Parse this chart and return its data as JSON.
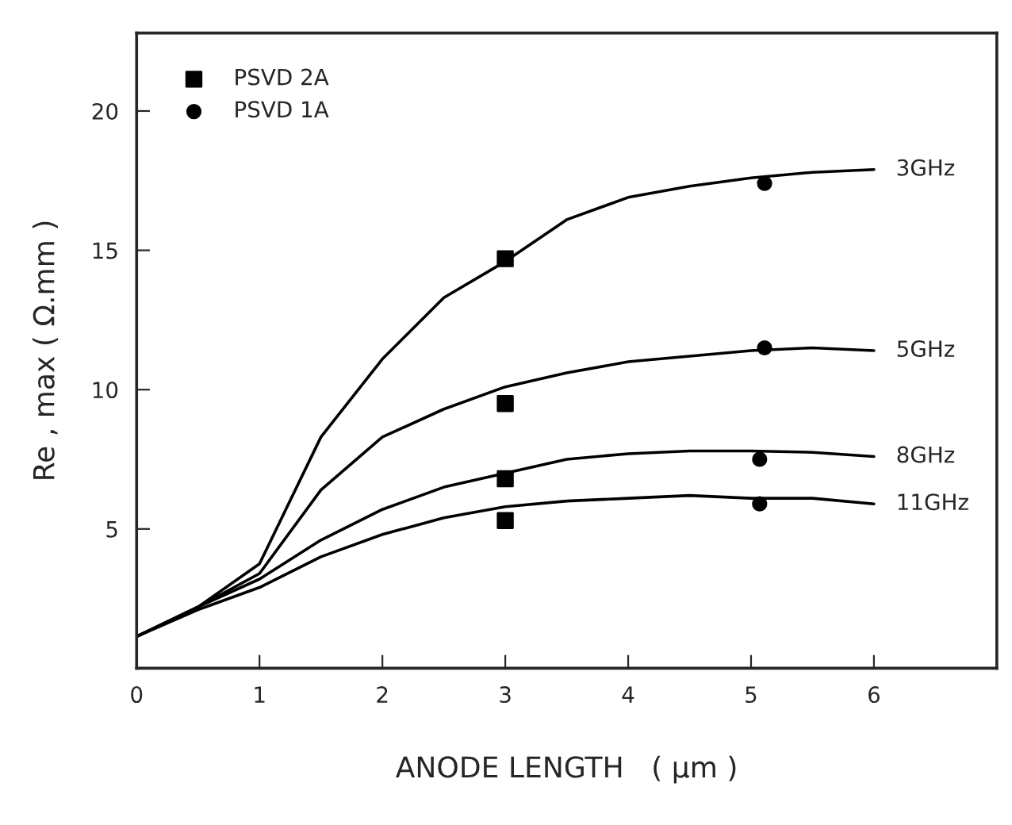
{
  "chart_data": {
    "type": "line",
    "xlabel": "ANODE LENGTH   ( µm )",
    "ylabel": "Re , max ( Ω.mm )",
    "xlim": [
      0,
      7
    ],
    "ylim": [
      0,
      22.8
    ],
    "xticks": [
      0,
      1,
      2,
      3,
      4,
      5,
      6
    ],
    "yticks": [
      5,
      10,
      15,
      20
    ],
    "grid": false,
    "legend": "top left",
    "series": [
      {
        "name": "3GHz",
        "color": "#000000",
        "x": [
          0,
          0.5,
          1,
          1.5,
          2,
          2.5,
          3,
          3.5,
          4,
          4.5,
          5,
          5.5,
          6
        ],
        "values": [
          1.14,
          2.2,
          3.75,
          8.3,
          11.1,
          13.3,
          14.6,
          16.1,
          16.9,
          17.3,
          17.6,
          17.8,
          17.9
        ]
      },
      {
        "name": "5GHz",
        "color": "#000000",
        "x": [
          0,
          0.5,
          1,
          1.5,
          2,
          2.5,
          3,
          3.5,
          4,
          4.5,
          5,
          5.5,
          6
        ],
        "values": [
          1.14,
          2.2,
          3.4,
          6.4,
          8.3,
          9.3,
          10.1,
          10.6,
          11.0,
          11.2,
          11.4,
          11.5,
          11.4
        ]
      },
      {
        "name": "8GHz",
        "color": "#000000",
        "x": [
          0,
          0.5,
          1,
          1.5,
          2,
          2.5,
          3,
          3.5,
          4,
          4.5,
          5,
          5.5,
          6
        ],
        "values": [
          1.14,
          2.2,
          3.2,
          4.6,
          5.7,
          6.5,
          7.0,
          7.5,
          7.7,
          7.8,
          7.8,
          7.75,
          7.6
        ]
      },
      {
        "name": "11GHz",
        "color": "#000000",
        "x": [
          0,
          0.5,
          1,
          1.5,
          2,
          2.5,
          3,
          3.5,
          4,
          4.5,
          5,
          5.5,
          6
        ],
        "values": [
          1.14,
          2.1,
          2.9,
          4.0,
          4.8,
          5.4,
          5.8,
          6.0,
          6.1,
          6.2,
          6.1,
          6.1,
          5.9
        ]
      },
      {
        "name": "PSVD 2A",
        "type": "scatter",
        "marker": "square",
        "color": "#000000",
        "x": [
          3.0,
          3.0,
          3.0,
          3.0
        ],
        "values": [
          14.7,
          9.5,
          6.8,
          5.3
        ]
      },
      {
        "name": "PSVD 1A",
        "type": "scatter",
        "marker": "circle",
        "color": "#000000",
        "x": [
          5.11,
          5.11,
          5.07,
          5.07
        ],
        "values": [
          17.4,
          11.5,
          7.5,
          5.9
        ]
      }
    ]
  }
}
